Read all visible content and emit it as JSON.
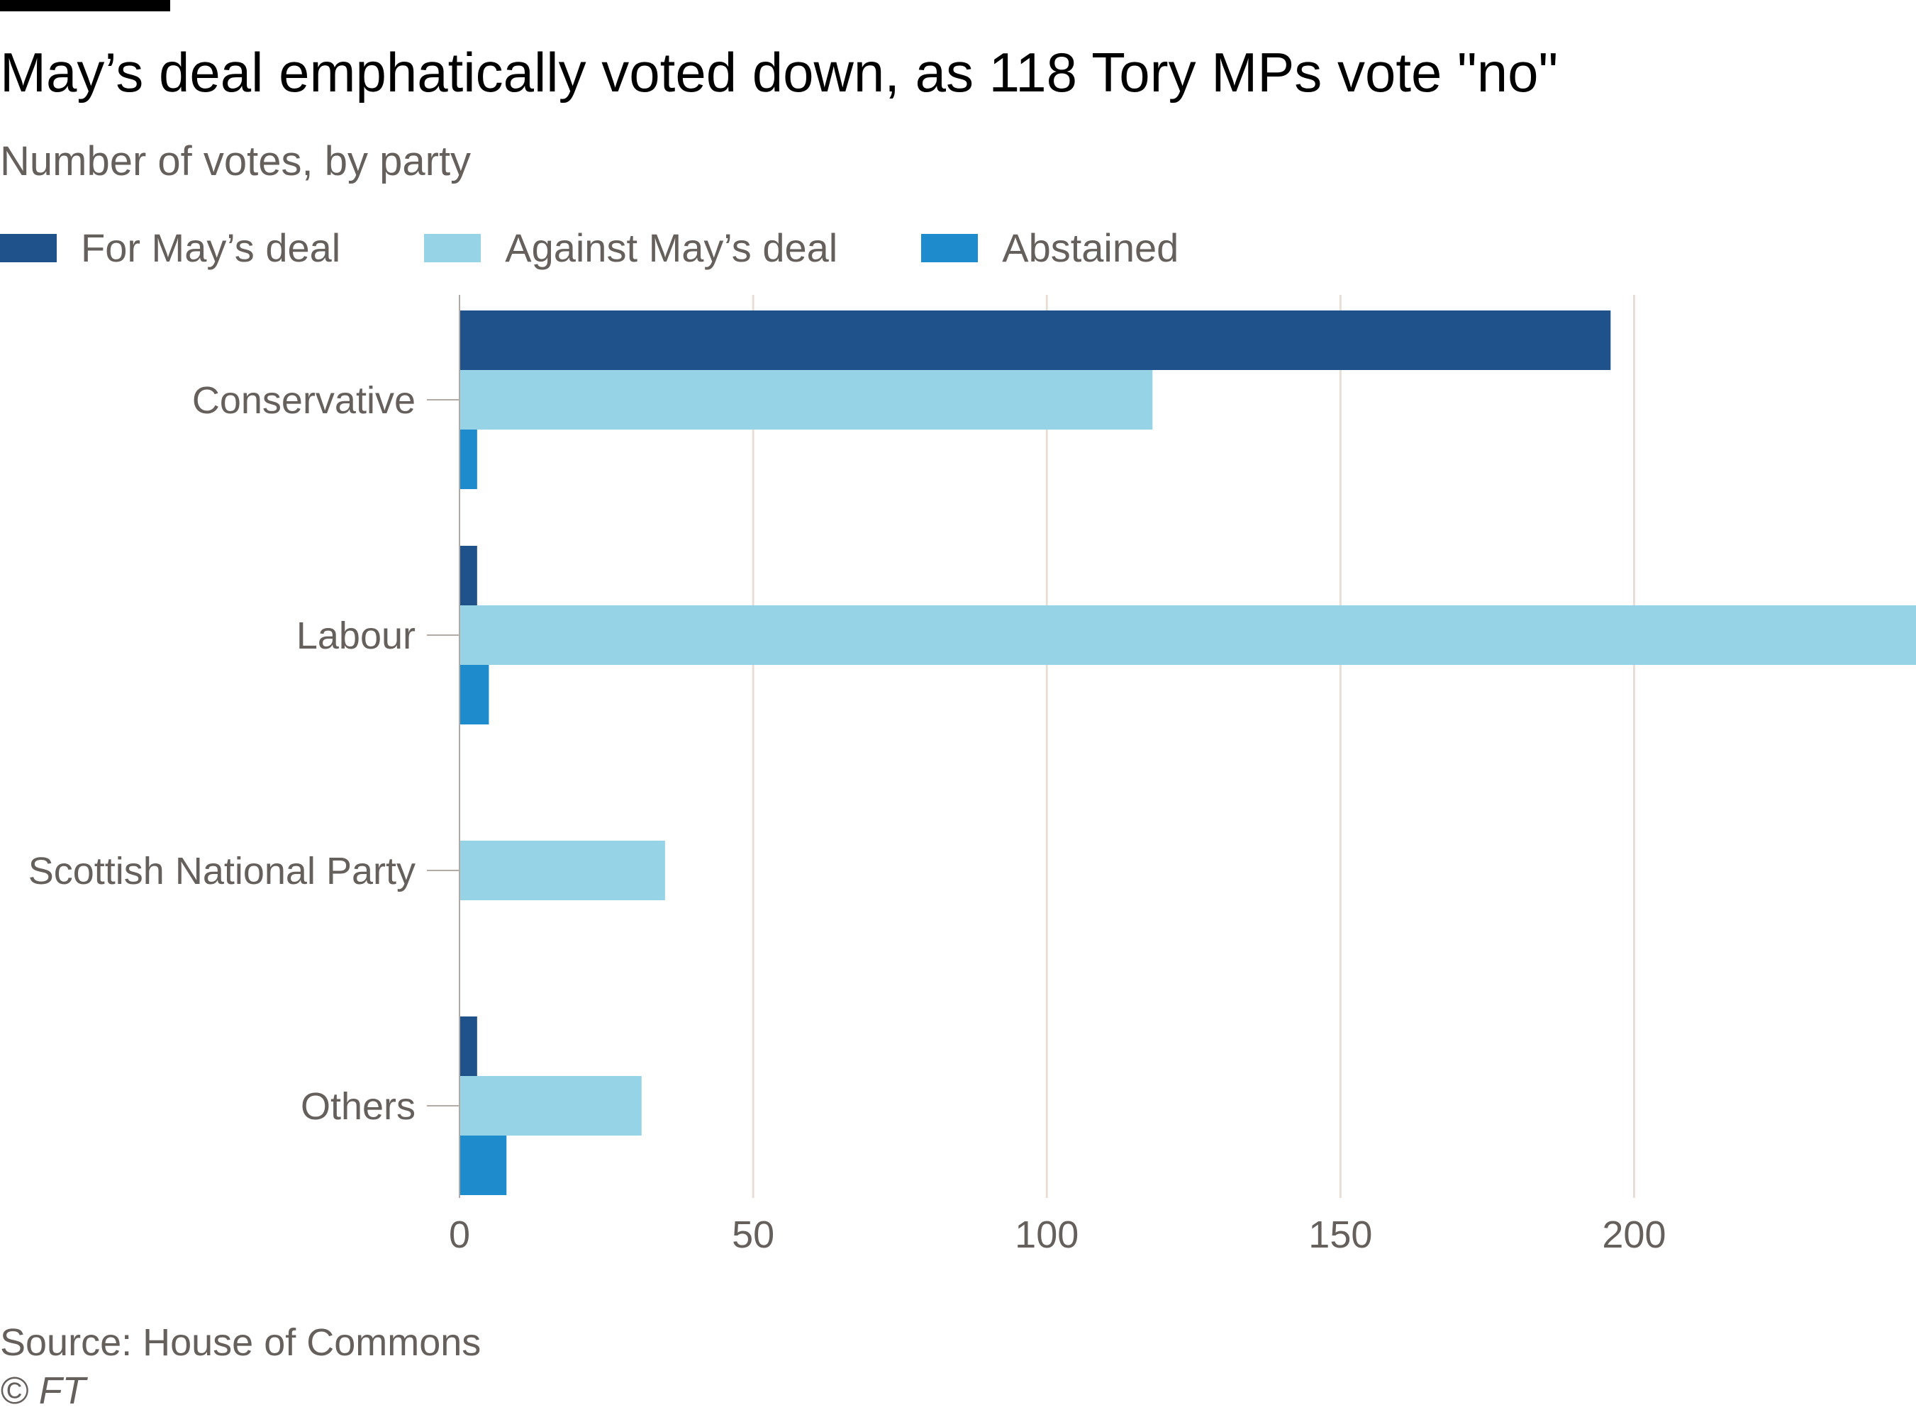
{
  "colors": {
    "for": "#1f528a",
    "against": "#96d3e6",
    "abstained": "#1e8bcd",
    "grid": "#e9ded4",
    "axis": "#b3aaa4",
    "text_muted": "#66605c"
  },
  "branding": {
    "credit": "© FT"
  },
  "chart_data": {
    "type": "bar",
    "orientation": "horizontal",
    "title": "May’s deal emphatically voted down, as 118 Tory MPs vote \"no\"",
    "subtitle": "Number of votes, by party",
    "source": "Source: House of Commons",
    "categories": [
      "Conservative",
      "Labour",
      "Scottish National Party",
      "Others"
    ],
    "series": [
      {
        "name": "For May’s deal",
        "key": "for",
        "values": [
          196,
          3,
          0,
          3
        ]
      },
      {
        "name": "Against May’s deal",
        "key": "against",
        "values": [
          118,
          248,
          35,
          31
        ]
      },
      {
        "name": "Abstained",
        "key": "abstained",
        "values": [
          3,
          5,
          0,
          8
        ]
      }
    ],
    "xlim": [
      0,
      248
    ],
    "xticks": [
      0,
      50,
      100,
      150,
      200
    ],
    "xlabel": "",
    "ylabel": "",
    "grid": true,
    "legend": "top-left"
  }
}
